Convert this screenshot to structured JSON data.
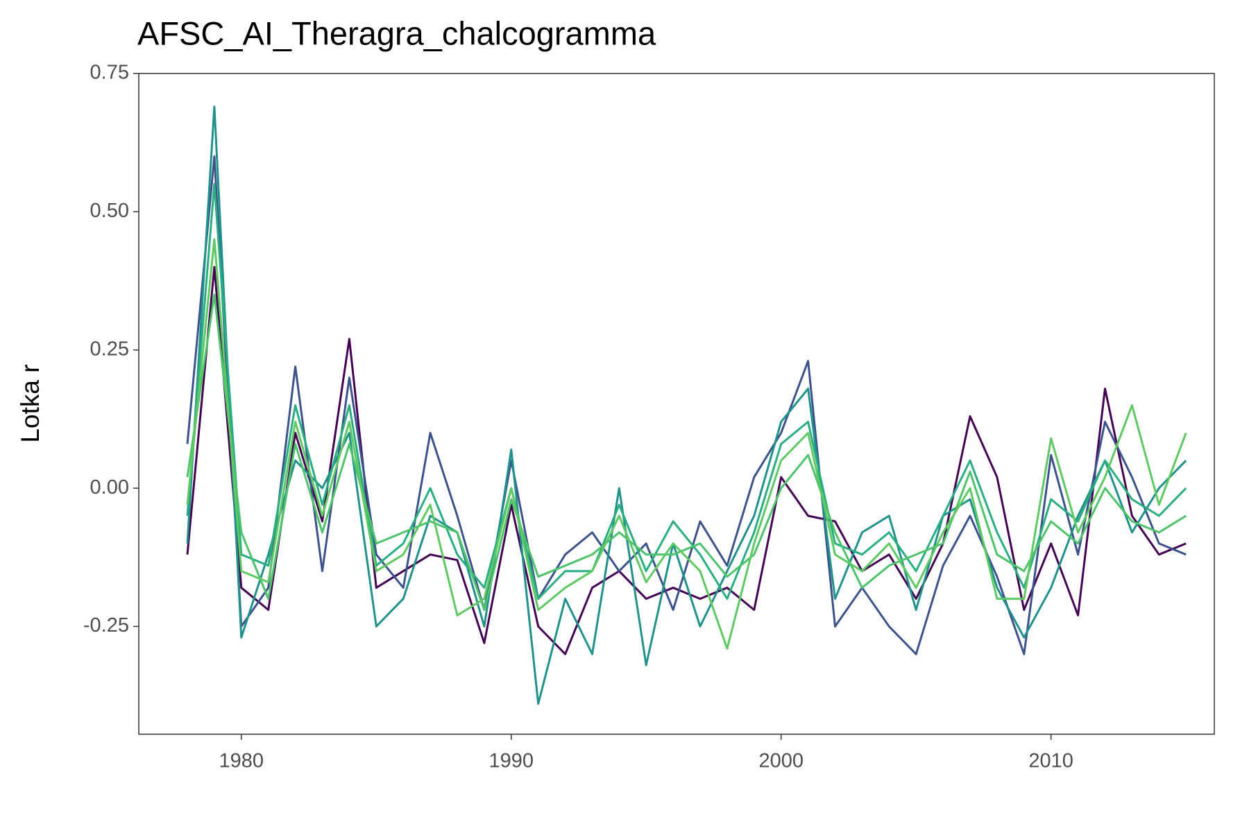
{
  "chart_data": {
    "type": "line",
    "title": "AFSC_AI_Theragra_chalcogramma",
    "y_label": "Lotka r",
    "x": [
      1978,
      1979,
      1980,
      1981,
      1982,
      1983,
      1984,
      1985,
      1986,
      1987,
      1988,
      1989,
      1990,
      1991,
      1992,
      1993,
      1994,
      1995,
      1996,
      1997,
      1998,
      1999,
      2000,
      2001,
      2002,
      2003,
      2004,
      2005,
      2006,
      2007,
      2008,
      2009,
      2010,
      2011,
      2012,
      2013,
      2014,
      2015
    ],
    "series": [
      {
        "color": "#440154",
        "values": [
          -0.12,
          0.4,
          -0.18,
          -0.22,
          0.1,
          -0.06,
          0.27,
          -0.18,
          -0.15,
          -0.12,
          -0.13,
          -0.28,
          -0.03,
          -0.25,
          -0.3,
          -0.18,
          -0.15,
          -0.2,
          -0.18,
          -0.2,
          -0.18,
          -0.22,
          0.02,
          -0.05,
          -0.06,
          -0.15,
          -0.12,
          -0.2,
          -0.1,
          0.13,
          0.02,
          -0.22,
          -0.1,
          -0.23,
          0.18,
          -0.05,
          -0.12,
          -0.1
        ]
      },
      {
        "color": "#3b528b",
        "values": [
          0.08,
          0.6,
          -0.25,
          -0.18,
          0.22,
          -0.15,
          0.2,
          -0.12,
          -0.18,
          0.1,
          -0.05,
          -0.22,
          0.05,
          -0.2,
          -0.12,
          -0.08,
          -0.15,
          -0.1,
          -0.22,
          -0.06,
          -0.14,
          0.02,
          0.1,
          0.23,
          -0.25,
          -0.18,
          -0.25,
          -0.3,
          -0.14,
          -0.05,
          -0.16,
          -0.3,
          0.06,
          -0.12,
          0.12,
          0.02,
          -0.1,
          -0.12
        ]
      },
      {
        "color": "#21918c",
        "values": [
          -0.1,
          0.69,
          -0.27,
          -0.12,
          0.05,
          0.0,
          0.1,
          -0.25,
          -0.2,
          -0.05,
          -0.08,
          -0.25,
          0.07,
          -0.39,
          -0.2,
          -0.3,
          0.0,
          -0.32,
          -0.1,
          -0.25,
          -0.15,
          -0.05,
          0.12,
          0.18,
          -0.2,
          -0.08,
          -0.05,
          -0.22,
          -0.05,
          -0.02,
          -0.18,
          -0.27,
          -0.18,
          -0.05,
          0.05,
          -0.08,
          0.0,
          0.05
        ]
      },
      {
        "color": "#28ae80",
        "values": [
          -0.05,
          0.55,
          -0.12,
          -0.14,
          0.15,
          -0.03,
          0.15,
          -0.14,
          -0.1,
          0.0,
          -0.12,
          -0.18,
          0.0,
          -0.2,
          -0.15,
          -0.15,
          -0.03,
          -0.15,
          -0.06,
          -0.12,
          -0.2,
          -0.08,
          0.08,
          0.12,
          -0.1,
          -0.12,
          -0.08,
          -0.15,
          -0.05,
          0.05,
          -0.08,
          -0.18,
          -0.02,
          -0.06,
          0.05,
          -0.02,
          -0.05,
          0.0
        ]
      },
      {
        "color": "#4ec36b",
        "values": [
          0.02,
          0.35,
          -0.08,
          -0.2,
          0.08,
          -0.08,
          0.08,
          -0.1,
          -0.08,
          -0.06,
          -0.08,
          -0.22,
          -0.02,
          -0.16,
          -0.14,
          -0.12,
          -0.08,
          -0.12,
          -0.12,
          -0.1,
          -0.16,
          -0.12,
          0.0,
          0.06,
          -0.08,
          -0.18,
          -0.14,
          -0.12,
          -0.1,
          0.03,
          -0.12,
          -0.15,
          -0.06,
          -0.1,
          0.0,
          -0.06,
          -0.08,
          -0.05
        ]
      },
      {
        "color": "#5ec962",
        "values": [
          -0.03,
          0.45,
          -0.15,
          -0.17,
          0.12,
          -0.05,
          0.12,
          -0.15,
          -0.12,
          -0.03,
          -0.23,
          -0.2,
          0.0,
          -0.22,
          -0.18,
          -0.15,
          -0.05,
          -0.17,
          -0.1,
          -0.15,
          -0.29,
          -0.1,
          0.05,
          0.1,
          -0.12,
          -0.15,
          -0.1,
          -0.18,
          -0.08,
          0.0,
          -0.2,
          -0.2,
          0.09,
          -0.08,
          0.02,
          0.15,
          -0.03,
          0.1
        ]
      }
    ],
    "xlim": [
      1976.2,
      2016.05
    ],
    "xticks": [
      1980,
      1990,
      2000,
      2010
    ],
    "ylim": [
      -0.445,
      0.75
    ],
    "yticks": [
      {
        "value": -0.25,
        "label": "-0.25"
      },
      {
        "value": 0,
        "label": "0.00"
      },
      {
        "value": 0.25,
        "label": "0.25"
      },
      {
        "value": 0.5,
        "label": "0.50"
      },
      {
        "value": 0.75,
        "label": "0.75"
      }
    ],
    "grid": false
  }
}
